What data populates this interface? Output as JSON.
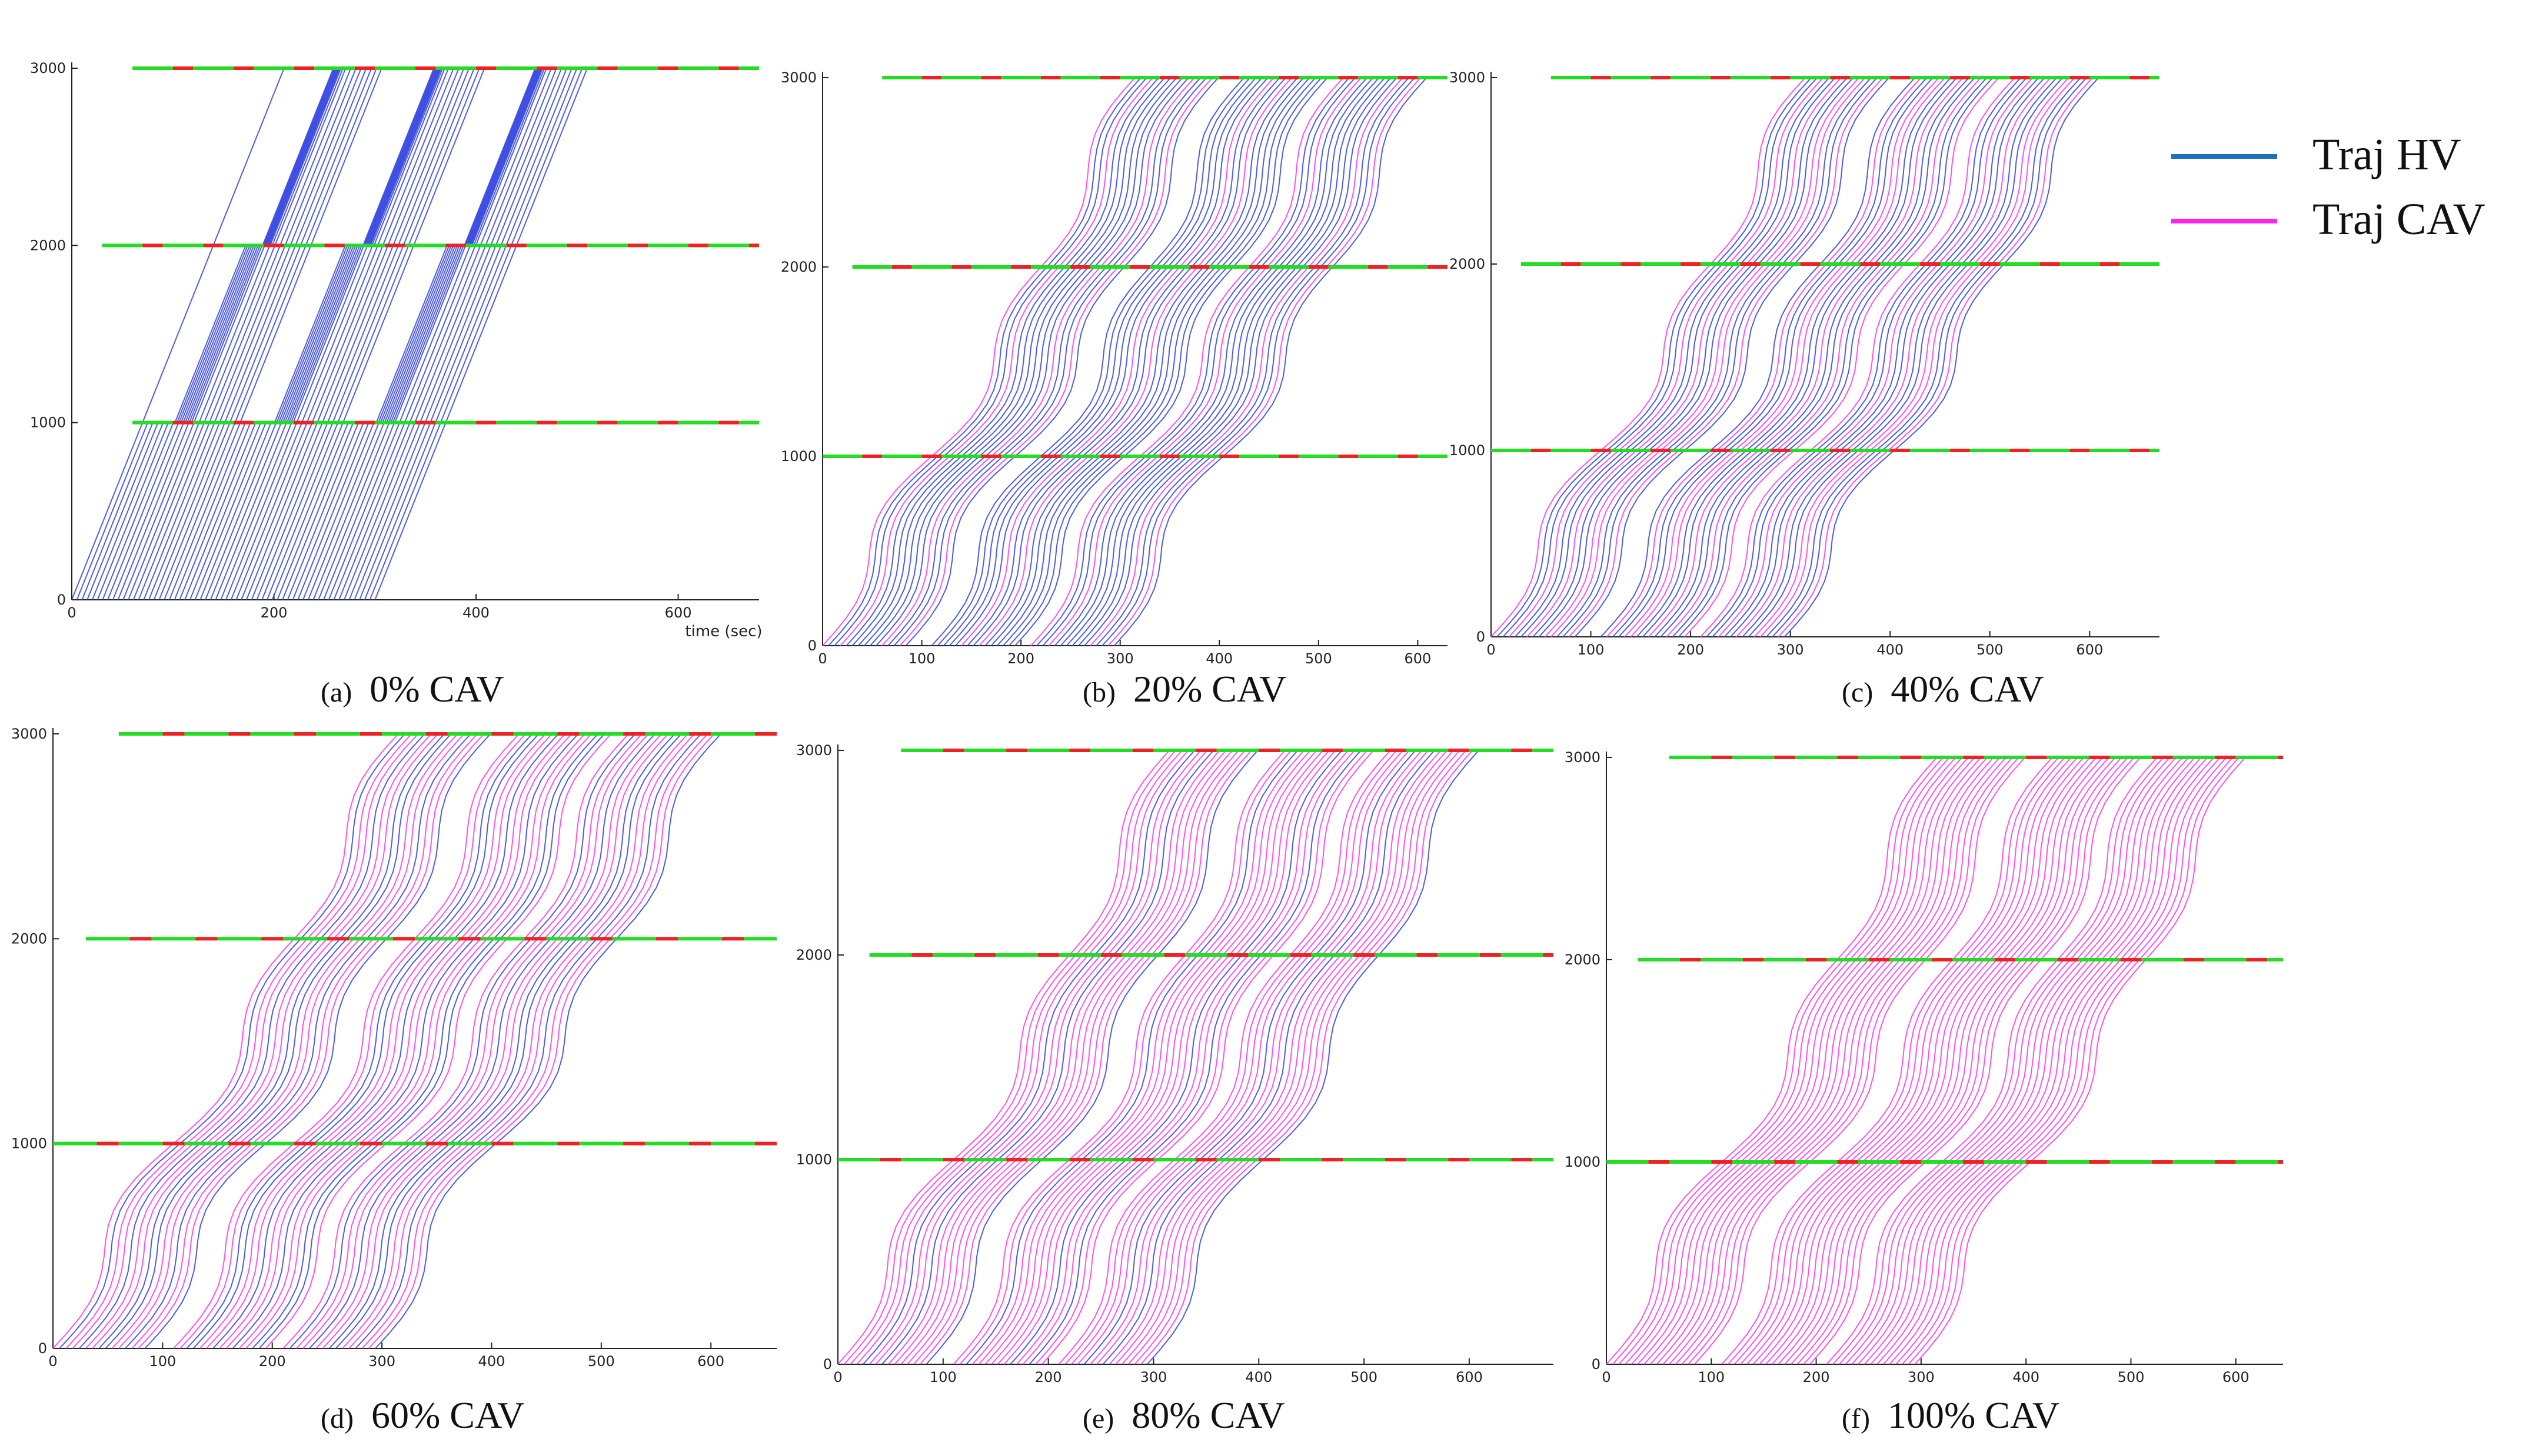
{
  "colors": {
    "hv": "#2f3fe0",
    "cav": "#ff33ee",
    "green": "#22dd22",
    "red": "#ee2222",
    "axis": "#222222"
  },
  "legend": {
    "items": [
      {
        "label": "Traj HV",
        "color": "#1a6fc0"
      },
      {
        "label": "Traj CAV",
        "color": "#ff22ee"
      }
    ]
  },
  "chart_data": [
    {
      "id": "a",
      "type": "line",
      "panel_label": "(a)",
      "caption": "0% CAV",
      "cav_share": 0,
      "xlabel": "time (sec)",
      "ylabel": "",
      "xlim": [
        0,
        680
      ],
      "ylim": [
        0,
        3000
      ],
      "xticks": [
        0,
        200,
        400,
        600
      ],
      "xtick_labels": [
        "0",
        "200",
        "400",
        "600"
      ],
      "yticks": [
        0,
        1000,
        2000,
        3000
      ],
      "ytick_labels": [
        "0",
        "1000",
        "2000",
        "3000"
      ],
      "signal_positions": [
        1000,
        2000,
        3000
      ],
      "signal_start_times": [
        60,
        30,
        60
      ],
      "signal_end_time": 680,
      "pattern": "queue",
      "vehicles": 60,
      "departure_window": [
        0,
        300
      ]
    },
    {
      "id": "b",
      "type": "line",
      "panel_label": "(b)",
      "caption": "20% CAV",
      "cav_share": 20,
      "xlabel": "",
      "ylabel": "",
      "xlim": [
        0,
        630
      ],
      "ylim": [
        0,
        3000
      ],
      "xticks": [
        0,
        100,
        200,
        300,
        400,
        500,
        600
      ],
      "xtick_labels": [
        "0",
        "100",
        "200",
        "300",
        "400",
        "500",
        "600"
      ],
      "yticks": [
        0,
        1000,
        2000,
        3000
      ],
      "ytick_labels": [
        "0",
        "1000",
        "2000",
        "3000"
      ],
      "signal_positions": [
        1000,
        2000,
        3000
      ],
      "signal_start_times": [
        0,
        30,
        60
      ],
      "signal_end_time": 630,
      "pattern": "platoon",
      "vehicles": 45,
      "departure_window": [
        0,
        300
      ]
    },
    {
      "id": "c",
      "type": "line",
      "panel_label": "(c)",
      "caption": "40% CAV",
      "cav_share": 40,
      "xlabel": "",
      "ylabel": "",
      "xlim": [
        0,
        670
      ],
      "ylim": [
        0,
        3000
      ],
      "xticks": [
        0,
        100,
        200,
        300,
        400,
        500,
        600
      ],
      "xtick_labels": [
        "0",
        "100",
        "200",
        "300",
        "400",
        "500",
        "600"
      ],
      "yticks": [
        0,
        1000,
        2000,
        3000
      ],
      "ytick_labels": [
        "0",
        "1000",
        "2000",
        "3000"
      ],
      "signal_positions": [
        1000,
        2000,
        3000
      ],
      "signal_start_times": [
        0,
        30,
        60
      ],
      "signal_end_time": 670,
      "pattern": "platoon",
      "vehicles": 45,
      "departure_window": [
        0,
        300
      ]
    },
    {
      "id": "d",
      "type": "line",
      "panel_label": "(d)",
      "caption": "60% CAV",
      "cav_share": 60,
      "xlabel": "",
      "ylabel": "",
      "xlim": [
        0,
        660
      ],
      "ylim": [
        0,
        3000
      ],
      "xticks": [
        0,
        100,
        200,
        300,
        400,
        500,
        600
      ],
      "xtick_labels": [
        "0",
        "100",
        "200",
        "300",
        "400",
        "500",
        "600"
      ],
      "yticks": [
        0,
        1000,
        2000,
        3000
      ],
      "ytick_labels": [
        "0",
        "1000",
        "2000",
        "3000"
      ],
      "signal_positions": [
        1000,
        2000,
        3000
      ],
      "signal_start_times": [
        0,
        30,
        60
      ],
      "signal_end_time": 660,
      "pattern": "platoon",
      "vehicles": 45,
      "departure_window": [
        0,
        300
      ]
    },
    {
      "id": "e",
      "type": "line",
      "panel_label": "(e)",
      "caption": "80% CAV",
      "cav_share": 80,
      "xlabel": "",
      "ylabel": "",
      "xlim": [
        0,
        680
      ],
      "ylim": [
        0,
        3000
      ],
      "xticks": [
        0,
        100,
        200,
        300,
        400,
        500,
        600
      ],
      "xtick_labels": [
        "0",
        "100",
        "200",
        "300",
        "400",
        "500",
        "600"
      ],
      "yticks": [
        0,
        1000,
        2000,
        3000
      ],
      "ytick_labels": [
        "0",
        "1000",
        "2000",
        "3000"
      ],
      "signal_positions": [
        1000,
        2000,
        3000
      ],
      "signal_start_times": [
        0,
        30,
        60
      ],
      "signal_end_time": 680,
      "pattern": "platoon",
      "vehicles": 45,
      "departure_window": [
        0,
        300
      ]
    },
    {
      "id": "f",
      "type": "line",
      "panel_label": "(f)",
      "caption": "100% CAV",
      "cav_share": 100,
      "xlabel": "",
      "ylabel": "",
      "xlim": [
        0,
        645
      ],
      "ylim": [
        0,
        3000
      ],
      "xticks": [
        0,
        100,
        200,
        300,
        400,
        500,
        600
      ],
      "xtick_labels": [
        "0",
        "100",
        "200",
        "300",
        "400",
        "500",
        "600"
      ],
      "yticks": [
        0,
        1000,
        2000,
        3000
      ],
      "ytick_labels": [
        "0",
        "1000",
        "2000",
        "3000"
      ],
      "signal_positions": [
        1000,
        2000,
        3000
      ],
      "signal_start_times": [
        0,
        30,
        60
      ],
      "signal_end_time": 645,
      "pattern": "platoon",
      "vehicles": 45,
      "departure_window": [
        0,
        300
      ]
    }
  ]
}
